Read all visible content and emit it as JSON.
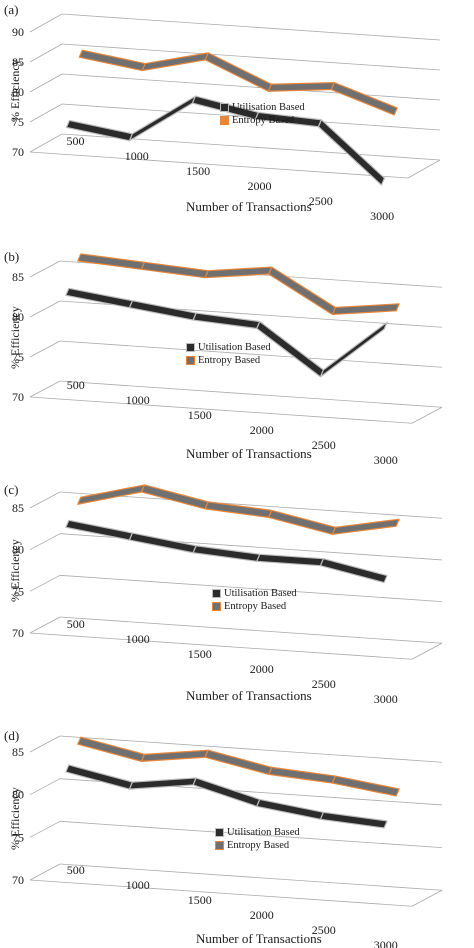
{
  "colors": {
    "utilisation_fill": "#2b2b2b",
    "utilisation_edge": "#bdbdbd",
    "entropy_fill": "#707070",
    "entropy_edge": "#e8863a",
    "grid": "#aaaaaa",
    "text": "#1a1a1a"
  },
  "chart_data": [
    {
      "type": "line",
      "panel_label": "(a)",
      "ylabel": "% Efficiency",
      "xlabel": "Number of Transactions",
      "x": [
        500,
        1000,
        1500,
        2000,
        2500,
        3000
      ],
      "ylim": [
        70,
        90
      ],
      "yticks": [
        70,
        75,
        80,
        85,
        90
      ],
      "grid": true,
      "legend_position": "center",
      "series": [
        {
          "name": "Utilisation Based",
          "values": [
            73,
            71.5,
            78.5,
            76.5,
            76,
            67
          ]
        },
        {
          "name": "Entropy Based",
          "values": [
            83.5,
            82,
            84.5,
            80,
            81,
            77.5
          ]
        }
      ]
    },
    {
      "type": "line",
      "panel_label": "(b)",
      "ylabel": "% Efficiency",
      "xlabel": "Number of Transactions",
      "x": [
        500,
        1000,
        1500,
        2000,
        2500,
        3000
      ],
      "ylim": [
        70,
        85
      ],
      "yticks": [
        70,
        75,
        80,
        85
      ],
      "grid": true,
      "legend_position": "center-left",
      "series": [
        {
          "name": "Utilisation Based",
          "values": [
            82,
            81,
            80,
            79.5,
            74,
            80.5
          ]
        },
        {
          "name": "Entropy Based",
          "values": [
            85.5,
            85,
            84.5,
            85.5,
            81,
            82
          ]
        }
      ]
    },
    {
      "type": "line",
      "panel_label": "(c)",
      "ylabel": "% Efficiency",
      "xlabel": "Number of Transactions",
      "x": [
        500,
        1000,
        1500,
        2000,
        2500,
        3000
      ],
      "ylim": [
        70,
        85
      ],
      "yticks": [
        70,
        75,
        80,
        85
      ],
      "grid": true,
      "legend_position": "center",
      "series": [
        {
          "name": "Utilisation Based",
          "values": [
            82,
            81,
            80,
            79.5,
            79.5,
            78
          ]
        },
        {
          "name": "Entropy Based",
          "values": [
            84,
            86,
            84.5,
            84,
            82.5,
            84
          ]
        }
      ]
    },
    {
      "type": "line",
      "panel_label": "(d)",
      "ylabel": "% Efficiency",
      "xlabel": "Number of Transactions",
      "x": [
        500,
        1000,
        1500,
        2000,
        2500,
        3000
      ],
      "ylim": [
        70,
        85
      ],
      "yticks": [
        70,
        75,
        80,
        85
      ],
      "grid": true,
      "legend_position": "center",
      "series": [
        {
          "name": "Utilisation Based",
          "values": [
            82,
            80.5,
            81.5,
            79.5,
            78.5,
            78
          ]
        },
        {
          "name": "Entropy Based",
          "values": [
            84.5,
            83,
            84,
            82.5,
            82,
            81
          ]
        }
      ]
    }
  ]
}
